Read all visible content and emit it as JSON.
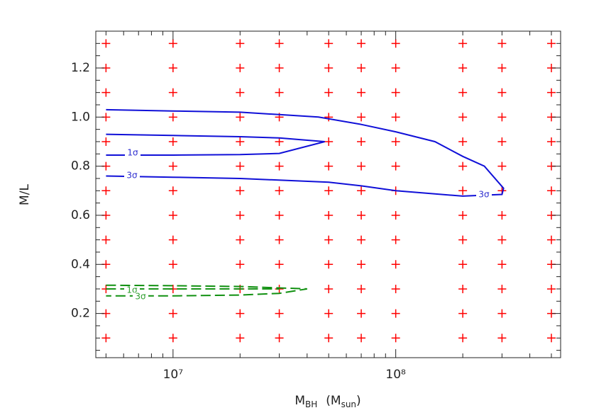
{
  "chart_data": {
    "type": "scatter",
    "xlabel": [
      "M",
      "BH",
      "(M",
      "sun",
      ")"
    ],
    "ylabel": "M/L",
    "xlog": true,
    "xlim": [
      4500000.0,
      550000000.0
    ],
    "ylim": [
      0.02,
      1.35
    ],
    "xticks": [
      {
        "value": 10000000.0,
        "label": "10⁷"
      },
      {
        "value": 100000000.0,
        "label": "10⁸"
      }
    ],
    "xminor": [
      5000000.0,
      6000000.0,
      7000000.0,
      8000000.0,
      9000000.0,
      20000000.0,
      30000000.0,
      40000000.0,
      50000000.0,
      60000000.0,
      70000000.0,
      80000000.0,
      90000000.0,
      200000000.0,
      300000000.0,
      400000000.0,
      500000000.0
    ],
    "yticks": [
      0.2,
      0.4,
      0.6,
      0.8,
      {
        "value": 1,
        "label": "1.0"
      },
      1.2
    ],
    "yminor": [
      0.05,
      0.1,
      0.15,
      0.25,
      0.3,
      0.35,
      0.45,
      0.5,
      0.55,
      0.65,
      0.7,
      0.75,
      0.85,
      0.9,
      0.95,
      1.05,
      1.1,
      1.15,
      1.25,
      1.3
    ],
    "series": [
      {
        "color": "#ff0000",
        "marker": "+",
        "x": [
          5000000.0,
          5000000.0,
          5000000.0,
          5000000.0,
          5000000.0,
          5000000.0,
          5000000.0,
          5000000.0,
          5000000.0,
          5000000.0,
          5000000.0,
          5000000.0,
          5000000.0,
          10000000.0,
          10000000.0,
          10000000.0,
          10000000.0,
          10000000.0,
          10000000.0,
          10000000.0,
          10000000.0,
          10000000.0,
          10000000.0,
          10000000.0,
          10000000.0,
          10000000.0,
          20000000.0,
          20000000.0,
          20000000.0,
          20000000.0,
          20000000.0,
          20000000.0,
          20000000.0,
          20000000.0,
          20000000.0,
          20000000.0,
          20000000.0,
          20000000.0,
          20000000.0,
          30000000.0,
          30000000.0,
          30000000.0,
          30000000.0,
          30000000.0,
          30000000.0,
          30000000.0,
          30000000.0,
          30000000.0,
          30000000.0,
          30000000.0,
          30000000.0,
          30000000.0,
          50000000.0,
          50000000.0,
          50000000.0,
          50000000.0,
          50000000.0,
          50000000.0,
          50000000.0,
          50000000.0,
          50000000.0,
          50000000.0,
          50000000.0,
          50000000.0,
          50000000.0,
          70000000.0,
          70000000.0,
          70000000.0,
          70000000.0,
          70000000.0,
          70000000.0,
          70000000.0,
          70000000.0,
          70000000.0,
          70000000.0,
          70000000.0,
          70000000.0,
          70000000.0,
          100000000.0,
          100000000.0,
          100000000.0,
          100000000.0,
          100000000.0,
          100000000.0,
          100000000.0,
          100000000.0,
          100000000.0,
          100000000.0,
          100000000.0,
          100000000.0,
          100000000.0,
          200000000.0,
          200000000.0,
          200000000.0,
          200000000.0,
          200000000.0,
          200000000.0,
          200000000.0,
          200000000.0,
          200000000.0,
          200000000.0,
          200000000.0,
          200000000.0,
          200000000.0,
          300000000.0,
          300000000.0,
          300000000.0,
          300000000.0,
          300000000.0,
          300000000.0,
          300000000.0,
          300000000.0,
          300000000.0,
          300000000.0,
          300000000.0,
          300000000.0,
          300000000.0,
          500000000.0,
          500000000.0,
          500000000.0,
          500000000.0,
          500000000.0,
          500000000.0,
          500000000.0,
          500000000.0,
          500000000.0,
          500000000.0,
          500000000.0,
          500000000.0,
          500000000.0
        ],
        "y": [
          0.1,
          0.2,
          0.3,
          0.4,
          0.5,
          0.6,
          0.7,
          0.8,
          0.9,
          1.0,
          1.1,
          1.2,
          1.3,
          0.1,
          0.2,
          0.3,
          0.4,
          0.5,
          0.6,
          0.7,
          0.8,
          0.9,
          1.0,
          1.1,
          1.2,
          1.3,
          0.1,
          0.2,
          0.3,
          0.4,
          0.5,
          0.6,
          0.7,
          0.8,
          0.9,
          1.0,
          1.1,
          1.2,
          1.3,
          0.1,
          0.2,
          0.3,
          0.4,
          0.5,
          0.6,
          0.7,
          0.8,
          0.9,
          1.0,
          1.1,
          1.2,
          1.3,
          0.1,
          0.2,
          0.3,
          0.4,
          0.5,
          0.6,
          0.7,
          0.8,
          0.9,
          1.0,
          1.1,
          1.2,
          1.3,
          0.1,
          0.2,
          0.3,
          0.4,
          0.5,
          0.6,
          0.7,
          0.8,
          0.9,
          1.0,
          1.1,
          1.2,
          1.3,
          0.1,
          0.2,
          0.3,
          0.4,
          0.5,
          0.6,
          0.7,
          0.8,
          0.9,
          1.0,
          1.1,
          1.2,
          1.3,
          0.1,
          0.2,
          0.3,
          0.4,
          0.5,
          0.6,
          0.7,
          0.8,
          0.9,
          1.0,
          1.1,
          1.2,
          1.3,
          0.1,
          0.2,
          0.3,
          0.4,
          0.5,
          0.6,
          0.7,
          0.8,
          0.9,
          1.0,
          1.1,
          1.2,
          1.3,
          0.1,
          0.2,
          0.3,
          0.4,
          0.5,
          0.6,
          0.7,
          0.8,
          0.9,
          1.0,
          1.1,
          1.2,
          1.3
        ]
      },
      {
        "color": "#1010d8",
        "marker": "line",
        "dash": false,
        "x": [
          5000000.0,
          10000000.0,
          20000000.0,
          30000000.0,
          45000000.0,
          70000000.0,
          100000000.0,
          150000000.0,
          200000000.0,
          250000000.0,
          305000000.0,
          300000000.0,
          200000000.0,
          100000000.0,
          70000000.0,
          50000000.0,
          20000000.0,
          10000000.0,
          5000000.0
        ],
        "y": [
          1.03,
          1.025,
          1.02,
          1.01,
          1.0,
          0.97,
          0.94,
          0.9,
          0.84,
          0.8,
          0.71,
          0.685,
          0.678,
          0.7,
          0.72,
          0.735,
          0.75,
          0.755,
          0.76
        ]
      },
      {
        "color": "#1010d8",
        "marker": "line",
        "dash": false,
        "x": [
          5000000.0,
          10000000.0,
          20000000.0,
          30000000.0,
          48000000.0,
          30000000.0,
          20000000.0,
          10000000.0,
          5000000.0
        ],
        "y": [
          0.93,
          0.925,
          0.92,
          0.915,
          0.9,
          0.852,
          0.847,
          0.845,
          0.845
        ]
      },
      {
        "color": "#109010",
        "marker": "line",
        "dash": true,
        "x": [
          5000000.0,
          10000000.0,
          20000000.0,
          40000000.0,
          30000000.0,
          20000000.0,
          10000000.0,
          5000000.0
        ],
        "y": [
          0.315,
          0.313,
          0.31,
          0.3,
          0.282,
          0.275,
          0.272,
          0.272
        ]
      },
      {
        "color": "#109010",
        "marker": "line",
        "dash": true,
        "x": [
          5000000.0,
          10000000.0,
          20000000.0,
          30000000.0
        ],
        "y": [
          0.3,
          0.3,
          0.3,
          0.3
        ]
      }
    ],
    "annotations": [
      {
        "text": "1σ",
        "color": "#3030d0"
      },
      {
        "text": "3σ",
        "color": "#3030d0"
      },
      {
        "text": "3σ",
        "color": "#3030d0"
      },
      {
        "text": "1σ",
        "color": "#30a030"
      },
      {
        "text": "3σ",
        "color": "#30a030"
      }
    ]
  }
}
